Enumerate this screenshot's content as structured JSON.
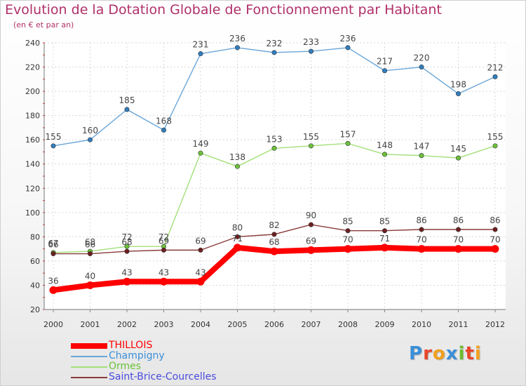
{
  "header": {
    "title": "Evolution de la Dotation Globale de Fonctionnement par Habitant",
    "subtitle": "(en € et par an)"
  },
  "brand": {
    "letters": [
      "P",
      "r",
      "o",
      "x",
      "i",
      "t",
      "i"
    ],
    "colors": [
      "#3a8fd8",
      "#e8462a",
      "#f2a01c",
      "#3a8fd8",
      "#6cbd2e",
      "#e8462a",
      "#f2a01c"
    ]
  },
  "chart_data": {
    "type": "line",
    "title": "Evolution de la Dotation Globale de Fonctionnement par Habitant",
    "subtitle": "(en € et par an)",
    "xlabel": "",
    "ylabel": "",
    "categories": [
      "2000",
      "2001",
      "2002",
      "2003",
      "2004",
      "2005",
      "2006",
      "2007",
      "2008",
      "2009",
      "2010",
      "2011",
      "2012"
    ],
    "yticks": [
      "20",
      "40",
      "60",
      "80",
      "100",
      "120",
      "140",
      "160",
      "180",
      "200",
      "220",
      "240"
    ],
    "ylim": [
      20,
      240
    ],
    "grid": true,
    "legend_position": "bottom-left",
    "series": [
      {
        "name": "THILLOIS",
        "color": "#ff0000",
        "point_color": "#ff0000",
        "emphasis": true,
        "values": [
          36,
          40,
          43,
          43,
          43,
          71,
          68,
          69,
          70,
          71,
          70,
          70,
          70
        ],
        "labels": [
          "36",
          "40",
          "43",
          "43",
          "43",
          "71",
          "68",
          "69",
          "70",
          "71",
          "70",
          "70",
          "70"
        ]
      },
      {
        "name": "Champigny",
        "color": "#6aa6d8",
        "point_color": "#2f7ec0",
        "emphasis": false,
        "values": [
          155,
          160,
          185,
          168,
          231,
          236,
          232,
          233,
          236,
          217,
          220,
          198,
          212
        ],
        "labels": [
          "155",
          "160",
          "185",
          "168",
          "231",
          "236",
          "232",
          "233",
          "236",
          "217",
          "220",
          "198",
          "212"
        ]
      },
      {
        "name": "Ormes",
        "color": "#a3e07a",
        "point_color": "#6cc23a",
        "emphasis": false,
        "values": [
          67,
          68,
          72,
          72,
          149,
          138,
          153,
          155,
          157,
          148,
          147,
          145,
          155
        ],
        "labels": [
          "67",
          "68",
          "72",
          "72",
          "149",
          "138",
          "153",
          "155",
          "157",
          "148",
          "147",
          "145",
          "155"
        ]
      },
      {
        "name": "Saint-Brice-Courcelles",
        "color": "#8a3a3a",
        "point_color": "#6e1f1f",
        "emphasis": false,
        "values": [
          66,
          66,
          68,
          69,
          69,
          80,
          82,
          90,
          85,
          85,
          86,
          86,
          86
        ],
        "labels": [
          "66",
          "66",
          "68",
          "69",
          "69",
          "80",
          "82",
          "90",
          "85",
          "85",
          "86",
          "86",
          "86"
        ]
      }
    ]
  }
}
